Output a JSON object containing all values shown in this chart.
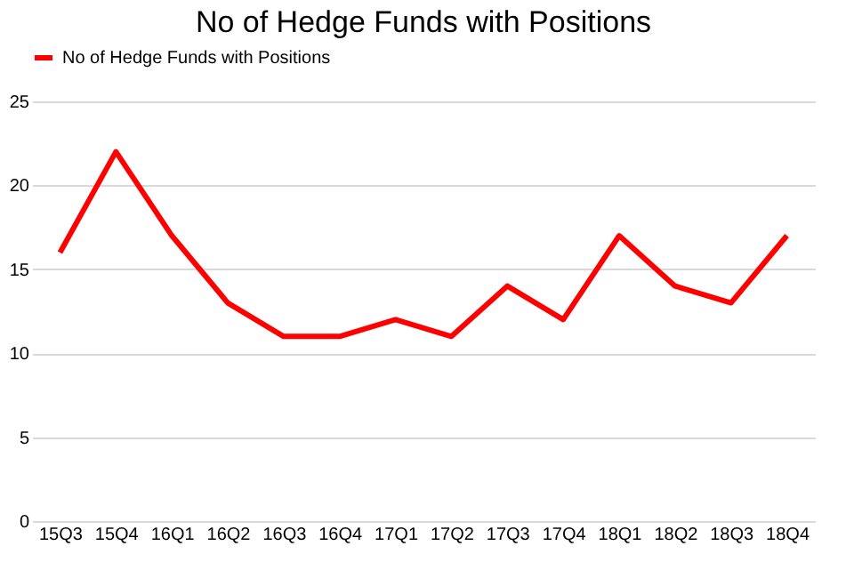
{
  "chart_data": {
    "type": "line",
    "title": "No of Hedge Funds with Positions",
    "categories": [
      "15Q3",
      "15Q4",
      "16Q1",
      "16Q2",
      "16Q3",
      "16Q4",
      "17Q1",
      "17Q2",
      "17Q3",
      "17Q4",
      "18Q1",
      "18Q2",
      "18Q3",
      "18Q4"
    ],
    "series": [
      {
        "name": "No of Hedge Funds with Positions",
        "color": "#ff0000",
        "values": [
          16,
          22,
          17,
          13,
          11,
          11,
          12,
          11,
          14,
          12,
          17,
          14,
          13,
          17
        ]
      }
    ],
    "ylim": [
      0,
      25
    ],
    "yticks": [
      0,
      5,
      10,
      15,
      20,
      25
    ],
    "grid": "y",
    "legend": "top",
    "marker": "none",
    "line_style": "solid"
  }
}
